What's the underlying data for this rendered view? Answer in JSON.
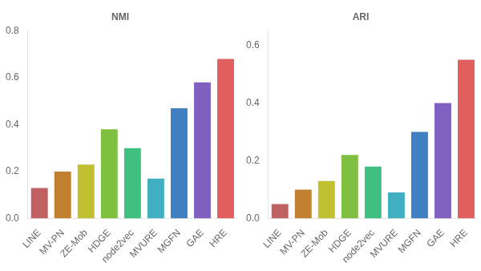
{
  "chart_data": [
    {
      "type": "bar",
      "title": "NMI",
      "categories": [
        "LINE",
        "MV-PN",
        "ZE-Mob",
        "HDGE",
        "node2vec",
        "MVURE",
        "MGFN",
        "GAE",
        "HRE"
      ],
      "values": [
        0.13,
        0.2,
        0.23,
        0.38,
        0.3,
        0.17,
        0.47,
        0.58,
        0.68
      ],
      "colors": [
        "#c06060",
        "#c08030",
        "#c0c030",
        "#80c040",
        "#40c080",
        "#40b0c0",
        "#4080c0",
        "#8060c0",
        "#e06060"
      ],
      "ylim": [
        0.0,
        0.8
      ],
      "yticks": [
        {
          "value": 0,
          "label": "0.0"
        },
        0.2,
        0.4,
        0.6,
        0.8
      ],
      "grid": false
    },
    {
      "type": "bar",
      "title": "ARI",
      "categories": [
        "LINE",
        "MV-PN",
        "ZE-Mob",
        "HDGE",
        "node2vec",
        "MVURE",
        "MGFN",
        "GAE",
        "HRE"
      ],
      "values": [
        0.05,
        0.1,
        0.13,
        0.22,
        0.18,
        0.09,
        0.3,
        0.4,
        0.55
      ],
      "colors": [
        "#c06060",
        "#c08030",
        "#c0c030",
        "#80c040",
        "#40c080",
        "#40b0c0",
        "#4080c0",
        "#8060c0",
        "#e06060"
      ],
      "ylim": [
        0.0,
        0.65
      ],
      "yticks": [
        {
          "value": 0,
          "label": "0.0"
        },
        0.2,
        0.4,
        0.6
      ],
      "grid": false
    }
  ]
}
